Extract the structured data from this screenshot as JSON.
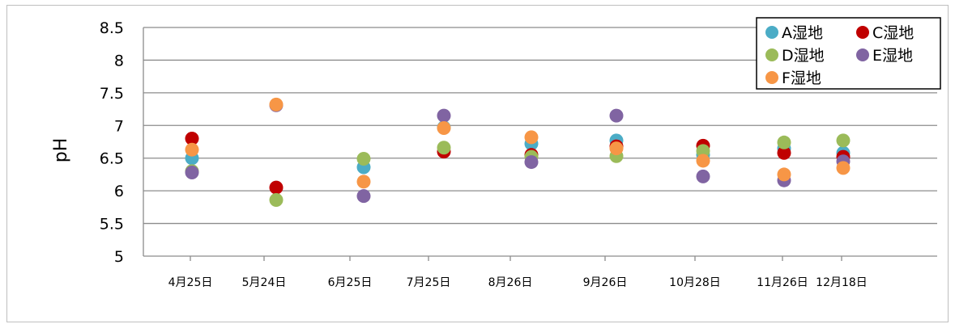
{
  "chart_data": {
    "type": "scatter",
    "title": "",
    "xlabel": "",
    "ylabel": "pH",
    "ylim": [
      5,
      8.5
    ],
    "yticks": [
      "5",
      "5.5",
      "6",
      "6.5",
      "7",
      "7.5",
      "8",
      "8.5"
    ],
    "grid": true,
    "legend_position": "top-right",
    "categories": [
      "4月25日",
      "5月24日",
      "6月25日",
      "7月25日",
      "8月26日",
      "9月26日",
      "10月28日",
      "11月26日",
      "12月18日"
    ],
    "series": [
      {
        "name": "A湿地",
        "color": "#4bacc6",
        "values": [
          6.5,
          null,
          6.36,
          6.97,
          6.72,
          6.77,
          6.55,
          6.65,
          6.58
        ]
      },
      {
        "name": "C湿地",
        "color": "#c00000",
        "values": [
          6.8,
          6.05,
          null,
          6.6,
          6.55,
          6.68,
          6.69,
          6.58,
          6.52
        ]
      },
      {
        "name": "D湿地",
        "color": "#9bbb59",
        "values": [
          6.3,
          5.86,
          6.49,
          6.66,
          6.52,
          6.53,
          6.61,
          6.74,
          6.77
        ]
      },
      {
        "name": "E湿地",
        "color": "#8064a2",
        "values": [
          6.28,
          7.31,
          5.92,
          7.15,
          6.44,
          7.15,
          6.22,
          6.16,
          6.45
        ]
      },
      {
        "name": "F湿地",
        "color": "#f79646",
        "values": [
          6.63,
          7.32,
          6.14,
          6.96,
          6.82,
          6.65,
          6.46,
          6.25,
          6.35
        ]
      }
    ]
  }
}
